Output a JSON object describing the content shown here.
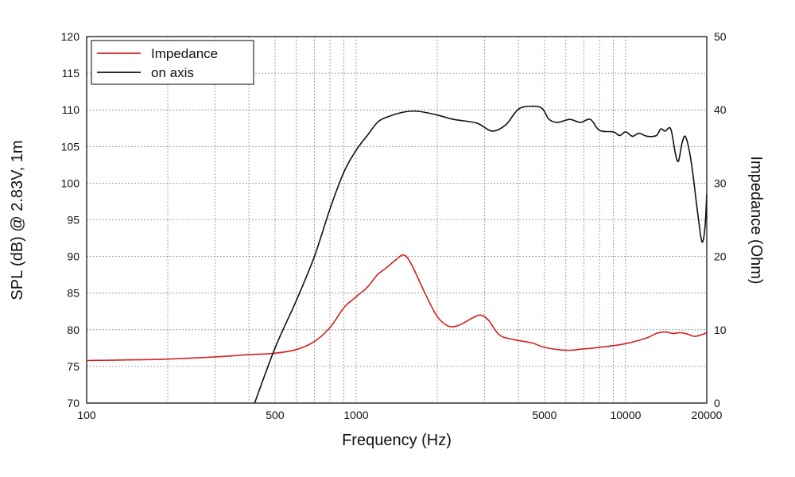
{
  "chart_data": {
    "type": "line",
    "title": "",
    "xlabel": "Frequency (Hz)",
    "ylabel": "SPL (dB) @ 2.83V, 1m",
    "y2label": "Impedance (Ohm)",
    "xscale": "log",
    "xlim": [
      100,
      20000
    ],
    "ylim": [
      70,
      120
    ],
    "y2lim": [
      0,
      50
    ],
    "grid": true,
    "legend_position": "top-left",
    "x_ticks": [
      {
        "value": 100,
        "label": "100"
      },
      {
        "value": 500,
        "label": "500"
      },
      {
        "value": 1000,
        "label": "1000"
      },
      {
        "value": 5000,
        "label": "5000"
      },
      {
        "value": 10000,
        "label": "10000"
      },
      {
        "value": 20000,
        "label": "20000"
      }
    ],
    "y_ticks": [
      "70",
      "75",
      "80",
      "85",
      "90",
      "95",
      "100",
      "105",
      "110",
      "115",
      "120"
    ],
    "y2_ticks": [
      "0",
      "10",
      "20",
      "30",
      "40",
      "50"
    ],
    "series": [
      {
        "name": "Impedance",
        "axis": "right",
        "color": "#d42020",
        "points": [
          [
            100,
            5.8
          ],
          [
            150,
            5.9
          ],
          [
            200,
            6.0
          ],
          [
            300,
            6.3
          ],
          [
            400,
            6.6
          ],
          [
            500,
            6.8
          ],
          [
            600,
            7.3
          ],
          [
            700,
            8.4
          ],
          [
            800,
            10.3
          ],
          [
            900,
            13.0
          ],
          [
            1000,
            14.5
          ],
          [
            1100,
            15.8
          ],
          [
            1200,
            17.5
          ],
          [
            1300,
            18.5
          ],
          [
            1400,
            19.5
          ],
          [
            1500,
            20.2
          ],
          [
            1600,
            19.0
          ],
          [
            1800,
            15.0
          ],
          [
            2000,
            11.8
          ],
          [
            2200,
            10.5
          ],
          [
            2400,
            10.6
          ],
          [
            2700,
            11.6
          ],
          [
            2900,
            12.0
          ],
          [
            3100,
            11.3
          ],
          [
            3400,
            9.3
          ],
          [
            3800,
            8.7
          ],
          [
            4500,
            8.2
          ],
          [
            5000,
            7.6
          ],
          [
            6000,
            7.2
          ],
          [
            7000,
            7.4
          ],
          [
            8000,
            7.6
          ],
          [
            10000,
            8.1
          ],
          [
            12000,
            8.9
          ],
          [
            13000,
            9.5
          ],
          [
            14000,
            9.7
          ],
          [
            15000,
            9.5
          ],
          [
            16000,
            9.6
          ],
          [
            17000,
            9.4
          ],
          [
            18000,
            9.1
          ],
          [
            19000,
            9.3
          ],
          [
            20000,
            9.6
          ]
        ]
      },
      {
        "name": "on axis",
        "axis": "left",
        "color": "#111111",
        "points": [
          [
            420,
            70.0
          ],
          [
            500,
            77.5
          ],
          [
            600,
            84.0
          ],
          [
            700,
            90.0
          ],
          [
            800,
            96.5
          ],
          [
            900,
            101.5
          ],
          [
            1000,
            104.5
          ],
          [
            1100,
            106.5
          ],
          [
            1200,
            108.3
          ],
          [
            1300,
            109.0
          ],
          [
            1500,
            109.7
          ],
          [
            1700,
            109.8
          ],
          [
            2000,
            109.3
          ],
          [
            2300,
            108.7
          ],
          [
            2800,
            108.2
          ],
          [
            3200,
            107.1
          ],
          [
            3600,
            108.0
          ],
          [
            4000,
            110.1
          ],
          [
            4500,
            110.5
          ],
          [
            4900,
            110.2
          ],
          [
            5200,
            108.7
          ],
          [
            5600,
            108.3
          ],
          [
            6200,
            108.7
          ],
          [
            6800,
            108.3
          ],
          [
            7400,
            108.7
          ],
          [
            8000,
            107.2
          ],
          [
            9000,
            107.0
          ],
          [
            9500,
            106.5
          ],
          [
            10000,
            107.0
          ],
          [
            10600,
            106.4
          ],
          [
            11200,
            106.8
          ],
          [
            12000,
            106.4
          ],
          [
            13000,
            106.5
          ],
          [
            13500,
            107.4
          ],
          [
            14000,
            107.1
          ],
          [
            14700,
            107.4
          ],
          [
            15300,
            104.0
          ],
          [
            15700,
            103.0
          ],
          [
            16200,
            105.5
          ],
          [
            16700,
            106.3
          ],
          [
            17500,
            103.0
          ],
          [
            18500,
            96.0
          ],
          [
            19200,
            92.0
          ],
          [
            19700,
            94.0
          ],
          [
            20000,
            98.5
          ]
        ]
      }
    ]
  }
}
